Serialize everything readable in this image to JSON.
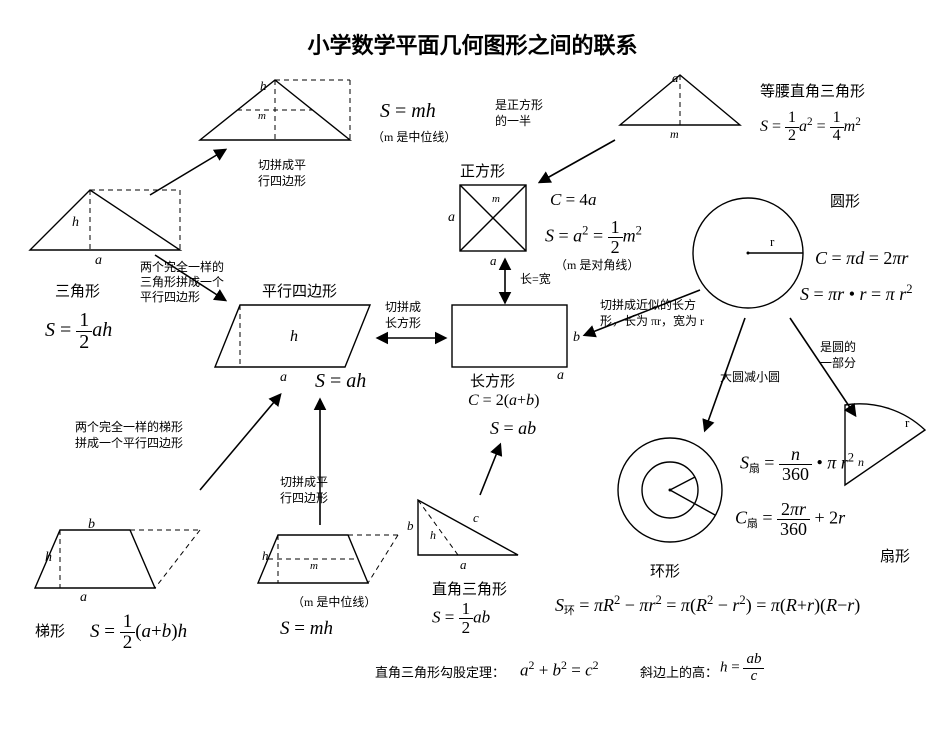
{
  "title": {
    "text": "小学数学平面几何图形之间的联系",
    "fontsize": 22,
    "color": "#000000"
  },
  "colors": {
    "bg": "#ffffff",
    "line": "#000000",
    "text": "#000000"
  },
  "shapes": {
    "triangle": {
      "name": "三角形",
      "formula_html": "<span class='it'>S</span> = <span class='frac'><span class='num'>1</span><span class='den'>2</span></span><span class='it'>ah</span>",
      "a": "a",
      "h": "h"
    },
    "triangle_mid": {
      "formula_html": "<span class='it'>S</span> = <span class='it'>mh</span>",
      "m": "m",
      "h": "h",
      "note": "（m 是中位线）"
    },
    "parallelogram": {
      "name": "平行四边形",
      "formula_html": "<span class='it'>S</span> = <span class='it'>ah</span>",
      "a": "a",
      "h": "h"
    },
    "trapezoid": {
      "name": "梯形",
      "formula_html": "<span class='it'>S</span> = <span class='frac'><span class='num'>1</span><span class='den'>2</span></span>(<span class='it'>a</span>+<span class='it'>b</span>)<span class='it'>h</span>",
      "a": "a",
      "b": "b",
      "h": "h"
    },
    "trapezoid_mid": {
      "formula_html": "<span class='it'>S</span> = <span class='it'>mh</span>",
      "m": "m",
      "h": "h",
      "note": "（m 是中位线）"
    },
    "square": {
      "name": "正方形",
      "C_html": "<span class='it'>C</span> = 4<span class='it'>a</span>",
      "S_html": "<span class='it'>S</span> = <span class='it'>a</span><span class='sup'>2</span> = <span class='frac'><span class='num'>1</span><span class='den'>2</span></span><span class='it'>m</span><span class='sup'>2</span>",
      "note": "（m 是对角线）",
      "a": "a",
      "m": "m"
    },
    "rectangle": {
      "name": "长方形",
      "C_html": "<span class='it'>C</span> = 2(<span class='it'>a</span>+<span class='it'>b</span>)",
      "S_html": "<span class='it'>S</span> = <span class='it'>ab</span>",
      "a": "a",
      "b": "b"
    },
    "right_triangle": {
      "name": "直角三角形",
      "S_html": "<span class='it'>S</span> = <span class='frac'><span class='num'>1</span><span class='den'>2</span></span><span class='it'>ab</span>",
      "a": "a",
      "b": "b",
      "c": "c",
      "h": "h"
    },
    "iso_right_triangle": {
      "name": "等腰直角三角形",
      "S_html": "<span class='it'>S</span> = <span class='frac'><span class='num'>1</span><span class='den'>2</span></span><span class='it'>a</span><span class='sup'>2</span> = <span class='frac'><span class='num'>1</span><span class='den'>4</span></span><span class='it'>m</span><span class='sup'>2</span>",
      "a": "a",
      "m": "m"
    },
    "circle": {
      "name": "圆形",
      "r": "r",
      "C_html": "<span class='it'>C</span> = <span class='it'>πd</span> = 2<span class='it'>πr</span>",
      "S_html": "<span class='it'>S</span> = <span class='it'>πr</span> • <span class='it'>r</span> = <span class='it'>π r</span><span class='sup'>2</span>"
    },
    "ring": {
      "name": "环形",
      "S_html": "<span class='it'>S</span><span class='sub'>环</span> = <span class='it'>πR</span><span class='sup'>2</span> − <span class='it'>πr</span><span class='sup'>2</span> = <span class='it'>π</span>(<span class='it'>R</span><span class='sup'>2</span> − <span class='it'>r</span><span class='sup'>2</span>) = <span class='it'>π</span>(<span class='it'>R</span>+<span class='it'>r</span>)(<span class='it'>R</span>−<span class='it'>r</span>)"
    },
    "sector": {
      "name": "扇形",
      "r": "r",
      "n": "n",
      "S_html": "<span class='it'>S</span><span class='sub'>扇</span> = <span class='frac'><span class='num'><span class='it'>n</span></span><span class='den'>360</span></span> • <span class='it'>π r</span><span class='sup'>2</span>",
      "C_html": "<span class='it'>C</span><span class='sub'>扇</span> = <span class='frac'><span class='num'>2<span class='it'>πr</span></span><span class='den'>360</span></span> + 2<span class='it'>r</span>"
    }
  },
  "arrows": {
    "tri_to_mid": "切拼成平行四边形",
    "tri_to_para": "两个完全一样的三角形拼成一个平行四边形",
    "para_to_rect": "切拼成长方形",
    "trap_to_para": "两个完全一样的梯形拼成一个平行四边形",
    "trap_mid_to_para": "切拼成平行四边形",
    "rect_to_square": "长=宽",
    "square_to_iso": "是正方形的一半",
    "rt_to_rect": "",
    "circle_to_rect": "切拼成近似的长方形，长为 πr，宽为 r",
    "circle_to_ring": "大圆减小圆",
    "circle_to_sector": "是圆的一部分"
  },
  "bottom": {
    "pythag_label": "直角三角形勾股定理：",
    "pythag_html": "<span class='it'>a</span><span class='sup'>2</span> + <span class='it'>b</span><span class='sup'>2</span> = <span class='it'>c</span><span class='sup'>2</span>",
    "height_label": "斜边上的高：",
    "height_html": "<span class='it'>h</span> = <span class='frac'><span class='num'><span class='it'>ab</span></span><span class='den'><span class='it'>c</span></span></span>"
  },
  "font": {
    "label": 15,
    "note": 12,
    "name": 15,
    "formula": 18,
    "formula_big": 20
  }
}
